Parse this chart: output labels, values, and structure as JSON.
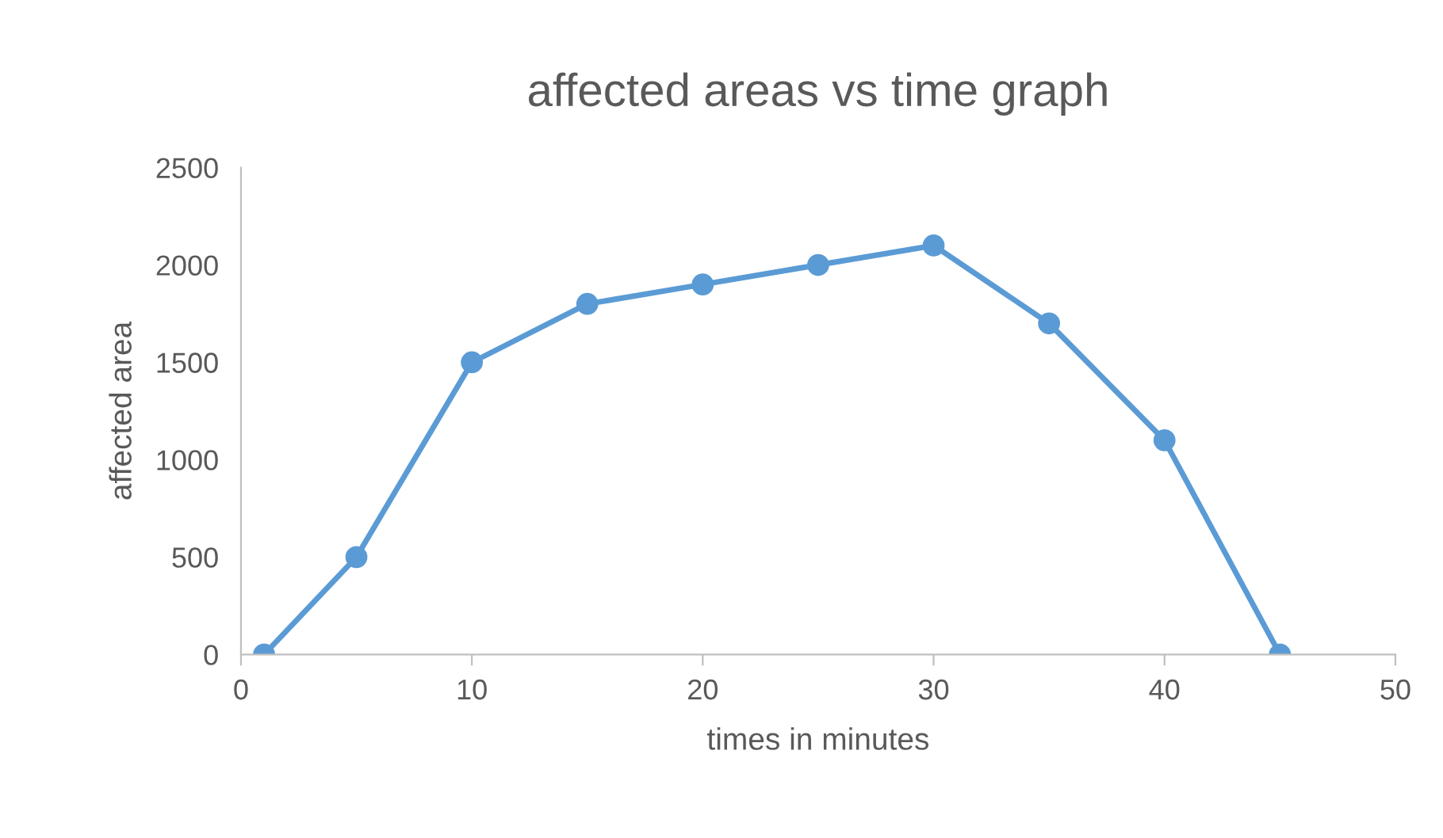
{
  "chart_data": {
    "type": "line",
    "title": "affected areas vs time graph",
    "xlabel": "times in minutes",
    "ylabel": "affected area",
    "x": [
      1,
      5,
      10,
      15,
      20,
      25,
      30,
      35,
      40,
      45
    ],
    "series": [
      {
        "color": "#5b9bd5",
        "values": [
          0,
          500,
          1500,
          1800,
          1900,
          2000,
          2100,
          1700,
          1100,
          0
        ]
      }
    ],
    "xlim": [
      0,
      50
    ],
    "xticks": [
      0,
      10,
      20,
      30,
      40,
      50
    ],
    "ylim": [
      0,
      2500
    ],
    "yticks": [
      0,
      500,
      1000,
      1500,
      2000,
      2500
    ],
    "grid": false,
    "legend": false,
    "marker": "circle",
    "line_style": "solid"
  }
}
